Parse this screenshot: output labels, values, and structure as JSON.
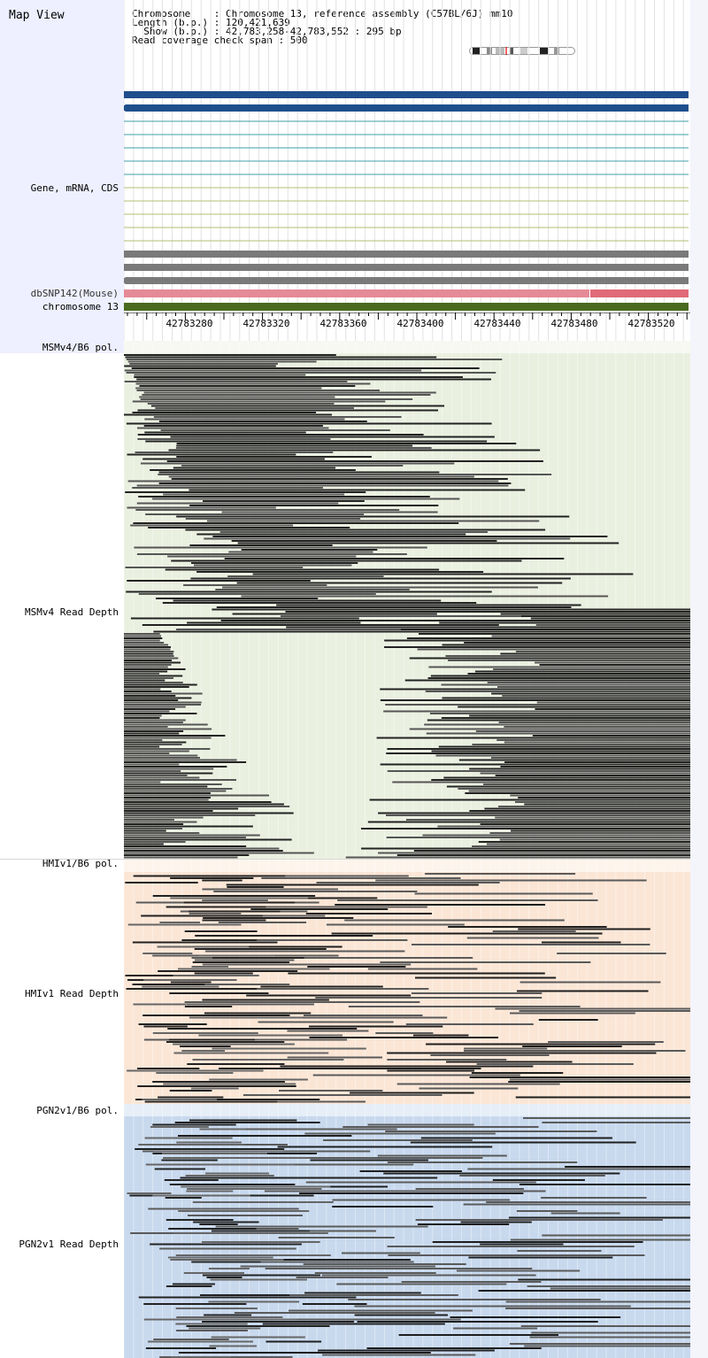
{
  "header": {
    "title": "Map View",
    "line_chromosome": "Chromosome    : Chromosome 13, reference assembly (C57BL/6J) mm10",
    "line_length": "Length (b.p.) : 120,421,639",
    "line_show": "  Show (b.p.) : 42,783,258-42,783,552 : 295 bp",
    "line_span": "Read coverage check span : 500"
  },
  "tracks": {
    "gene_label": "Gene, mRNA, CDS",
    "dbsnp_label": "dbSNP142(Mouse)",
    "chrom_label": "chromosome 13"
  },
  "ruler": {
    "ticks": [
      "42783280",
      "42783320",
      "42783360",
      "42783400",
      "42783440",
      "42783480",
      "42783520"
    ]
  },
  "panels": {
    "msm_pol": "MSMv4/B6 pol.",
    "msm_depth": "MSMv4 Read Depth",
    "hmi_pol": "HMIv1/B6 pol.",
    "hmi_depth": "HMIv1 Read Depth",
    "pgn_pol": "PGN2v1/B6 pol.",
    "pgn_depth": "PGN2v1 Read Depth"
  },
  "colors": {
    "gene_blue": "#1f4e8c",
    "mrna_teal": "#3f9fa8",
    "mrna_olive": "#b5bd73",
    "cds_gray": "#7a7a7a",
    "dbsnp": "#e58a97",
    "chromosome": "#4a6a1f",
    "msm_bg": "#eaf0e0",
    "hmi_bg": "#fbe6d6",
    "pgn_bg": "#c8d9ee"
  }
}
